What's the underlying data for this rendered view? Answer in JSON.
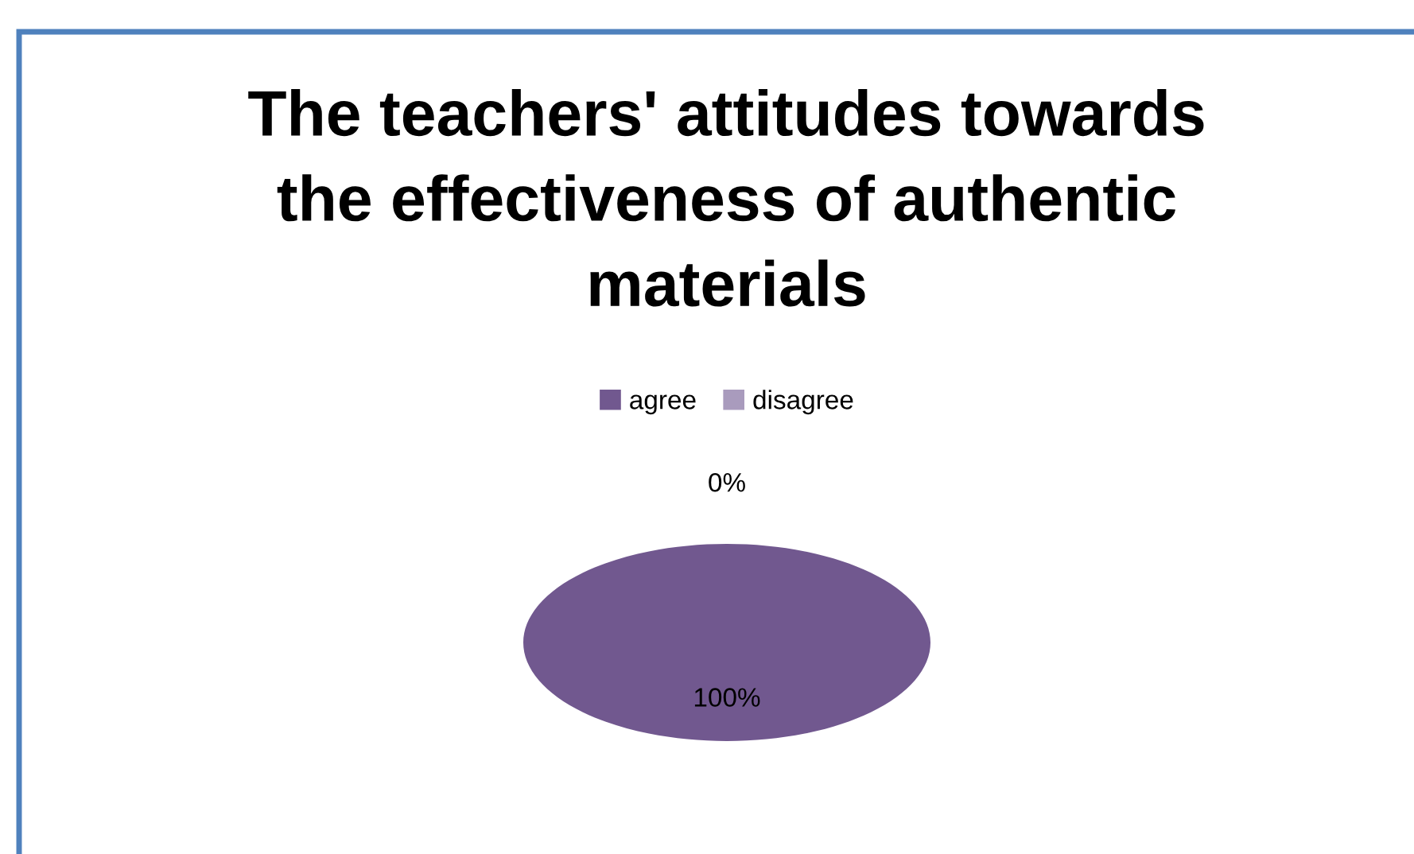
{
  "chart_data": {
    "type": "pie",
    "title": "The teachers' attitudes towards the effectiveness of authentic materials",
    "categories": [
      "agree",
      "disagree"
    ],
    "values": [
      100,
      0
    ],
    "colors": [
      "#71588f",
      "#a99bbd"
    ],
    "value_labels": [
      "100%",
      "0%"
    ],
    "legend": "top"
  }
}
